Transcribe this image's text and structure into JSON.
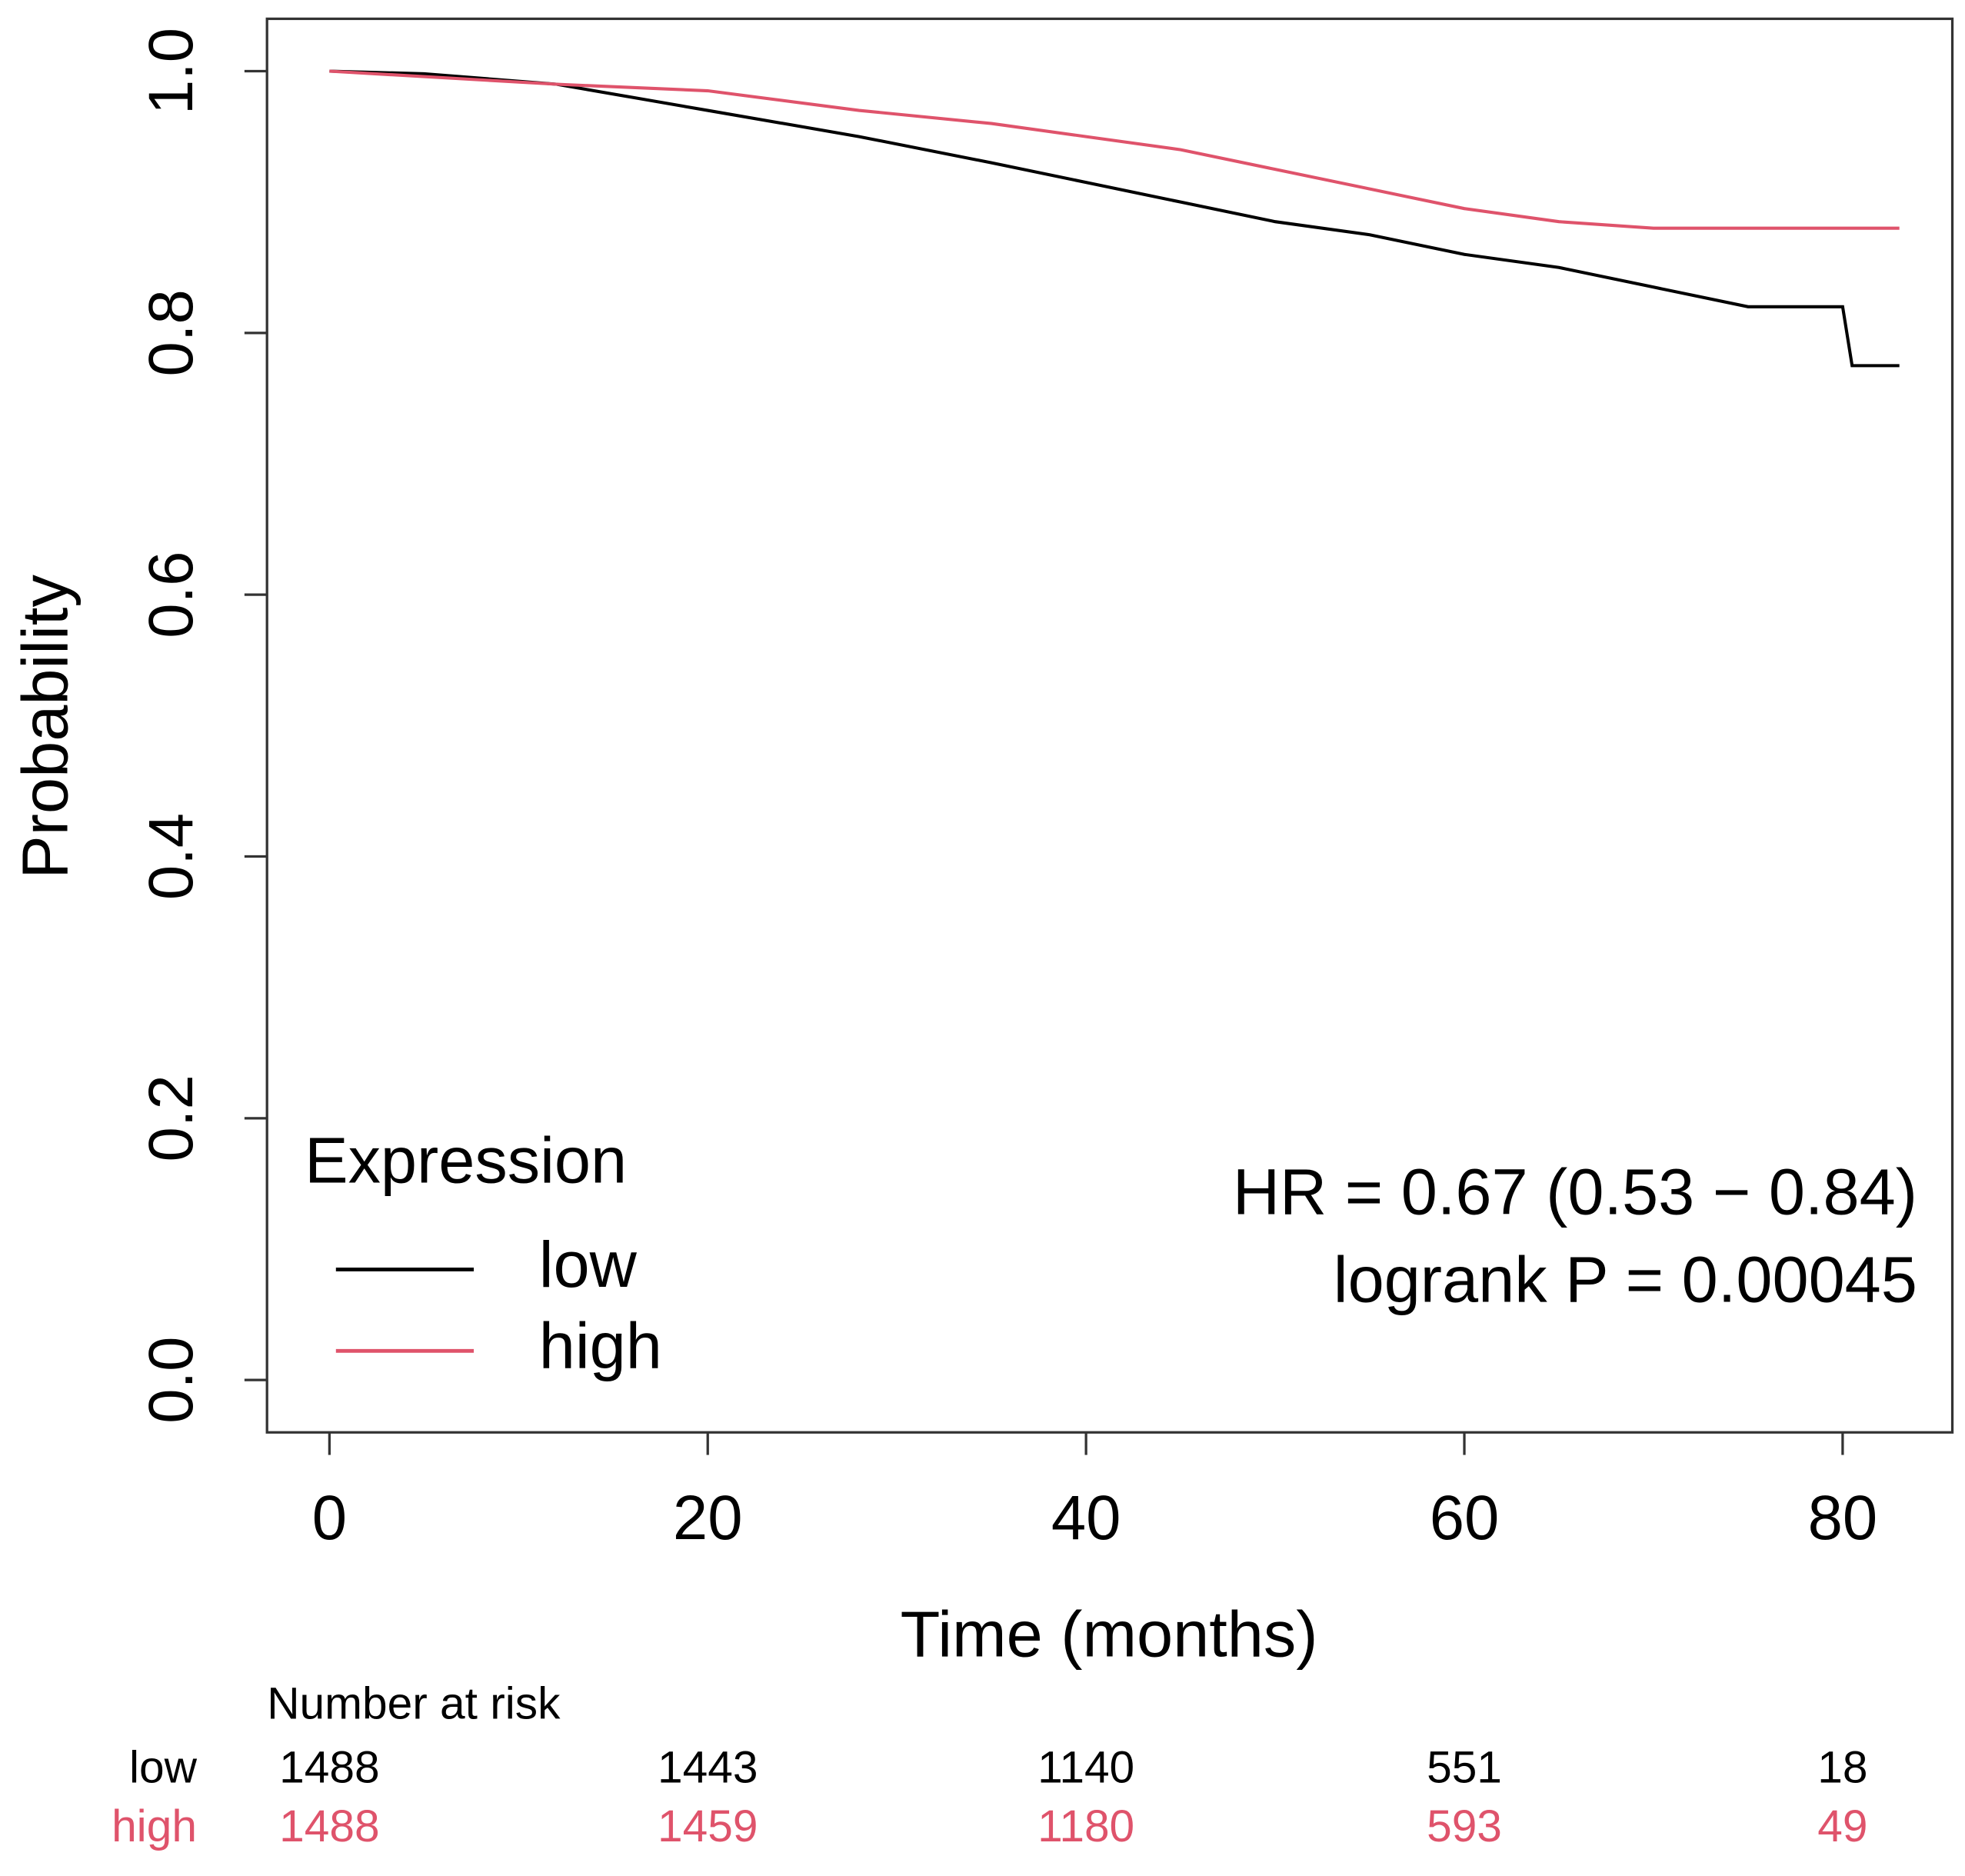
{
  "chart_data": {
    "type": "line",
    "x_label": "Time (months)",
    "y_label": "Probability",
    "xlim": [
      -3.3,
      85.8
    ],
    "ylim": [
      -0.04,
      1.04
    ],
    "xticks": [
      0,
      20,
      40,
      60,
      80
    ],
    "yticks": [
      {
        "value": 0,
        "label": "0.0"
      },
      0.2,
      0.4,
      0.6,
      0.8,
      {
        "value": 1,
        "label": "1.0"
      }
    ],
    "grid": false,
    "legend_title": "Expression",
    "legend_position": "bottom-left",
    "annotations": [
      "HR = 0.67 (0.53 − 0.84)",
      "logrank P = 0.00045"
    ],
    "series": [
      {
        "name": "low",
        "color": "#000000",
        "x": [
          0,
          5,
          12,
          16,
          20,
          28,
          35,
          40,
          45,
          50,
          55,
          60,
          65,
          70,
          75,
          80,
          80.5,
          83
        ],
        "values": [
          1,
          0.998,
          0.99,
          0.98,
          0.97,
          0.95,
          0.93,
          0.915,
          0.9,
          0.885,
          0.875,
          0.86,
          0.85,
          0.835,
          0.82,
          0.82,
          0.775,
          0.775
        ]
      },
      {
        "name": "high",
        "color": "#df536b",
        "x": [
          0,
          12,
          20,
          28,
          35,
          40,
          45,
          50,
          55,
          60,
          65,
          70,
          75,
          83
        ],
        "values": [
          1,
          0.99,
          0.985,
          0.97,
          0.96,
          0.95,
          0.94,
          0.925,
          0.91,
          0.895,
          0.885,
          0.88,
          0.88,
          0.88
        ]
      }
    ],
    "risk_table": {
      "title": "Number at risk",
      "rows": [
        {
          "name": "low",
          "color": "#000000",
          "values": [
            1488,
            1443,
            1140,
            551,
            18
          ]
        },
        {
          "name": "high",
          "color": "#df536b",
          "values": [
            1488,
            1459,
            1180,
            593,
            49
          ]
        }
      ]
    }
  }
}
